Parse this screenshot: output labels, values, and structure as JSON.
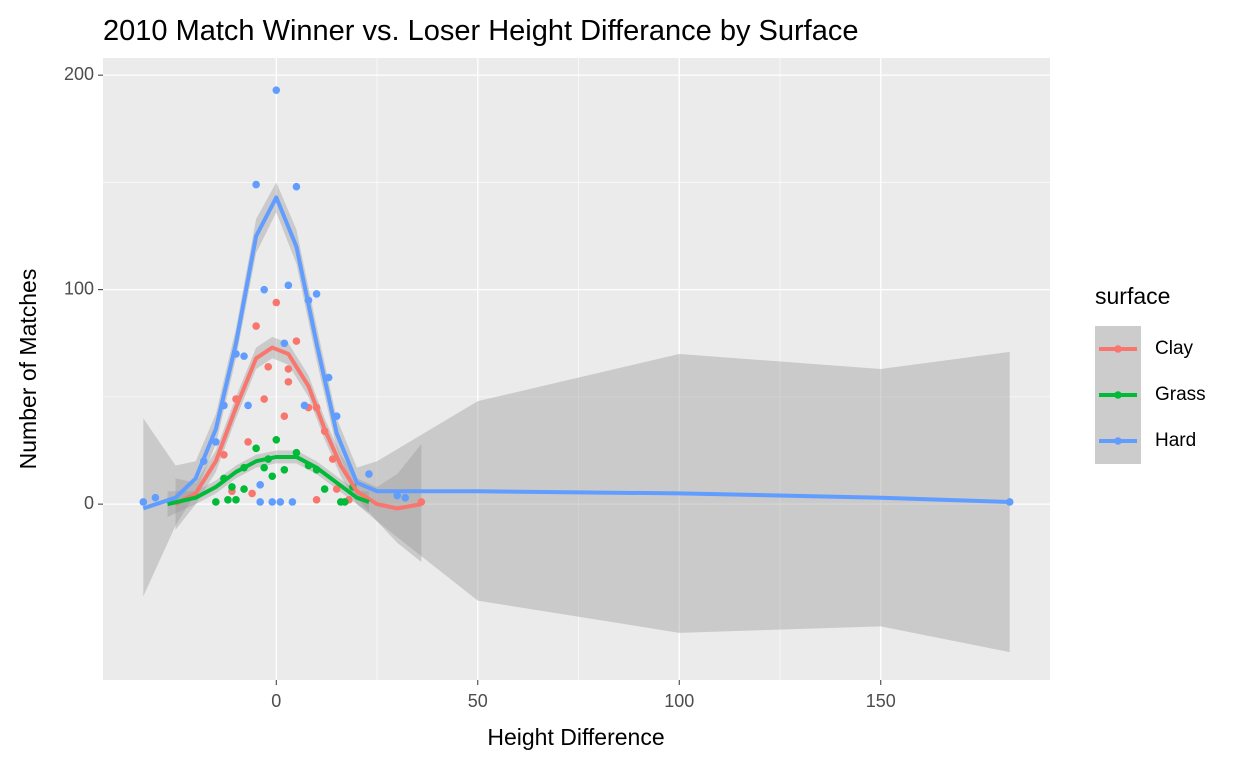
{
  "chart_data": {
    "type": "scatter",
    "title": "2010 Match Winner vs. Loser Height Differance by Surface",
    "x_label": "Height Difference",
    "y_label": "Number of Matches",
    "legend_title": "surface",
    "legend_position": "right",
    "xlim": [
      -43,
      192
    ],
    "ylim": [
      -82,
      208
    ],
    "xticks": [
      0,
      50,
      100,
      150
    ],
    "yticks": [
      0,
      100,
      200
    ],
    "grid": true,
    "series": [
      {
        "name": "Clay",
        "color": "#F8766D",
        "x": [
          0,
          -5,
          5,
          -2,
          3,
          3,
          -10,
          -3,
          8,
          10,
          -13,
          2,
          -7,
          12,
          14,
          -13,
          -11,
          -6,
          15,
          18,
          10,
          36
        ],
        "values": [
          94,
          83,
          76,
          64,
          63,
          57,
          49,
          49,
          45,
          45,
          46,
          41,
          29,
          34,
          21,
          23,
          6,
          5,
          7,
          2,
          2,
          1
        ],
        "smooth": {
          "x": [
            -25,
            -20,
            -15,
            -10,
            -5,
            -1,
            3,
            8,
            12,
            16,
            20,
            25,
            30,
            36
          ],
          "values": [
            0,
            5,
            20,
            45,
            68,
            73,
            70,
            55,
            35,
            18,
            6,
            0,
            -2,
            0
          ],
          "lower": [
            -12,
            0,
            15,
            40,
            63,
            68,
            65,
            50,
            30,
            13,
            0,
            -8,
            -18,
            -27
          ],
          "upper": [
            12,
            10,
            25,
            50,
            73,
            78,
            75,
            60,
            40,
            23,
            12,
            8,
            14,
            28
          ]
        }
      },
      {
        "name": "Grass",
        "color": "#00BA38",
        "x": [
          0,
          -5,
          5,
          -2,
          -3,
          -1,
          2,
          8,
          10,
          -8,
          -13,
          -11,
          -8,
          -10,
          -15,
          -12,
          16,
          17,
          12,
          19
        ],
        "values": [
          30,
          26,
          24,
          21,
          17,
          13,
          16,
          18,
          16,
          17,
          12,
          8,
          7,
          2,
          1,
          2,
          1,
          1,
          7,
          8
        ],
        "smooth": {
          "x": [
            -27,
            -20,
            -15,
            -10,
            -5,
            0,
            5,
            10,
            15,
            20,
            23
          ],
          "values": [
            0,
            3,
            8,
            15,
            20,
            22,
            22,
            17,
            10,
            3,
            1
          ],
          "lower": [
            -6,
            0,
            5,
            12,
            17,
            19,
            19,
            14,
            7,
            0,
            -4
          ],
          "upper": [
            6,
            6,
            11,
            18,
            23,
            25,
            25,
            20,
            13,
            6,
            6
          ]
        }
      },
      {
        "name": "Hard",
        "color": "#619CFF",
        "x": [
          -33,
          -30,
          -18,
          -15,
          0,
          -5,
          5,
          3,
          10,
          -3,
          8,
          2,
          -10,
          -8,
          13,
          7,
          -13,
          -7,
          15,
          -4,
          -4,
          -1,
          1,
          4,
          23,
          30,
          32,
          182
        ],
        "values": [
          1,
          3,
          20,
          29,
          193,
          149,
          148,
          102,
          98,
          100,
          95,
          75,
          70,
          69,
          59,
          46,
          46,
          46,
          41,
          9,
          1,
          1,
          1,
          1,
          14,
          4,
          3,
          1
        ],
        "smooth": {
          "x": [
            -33,
            -25,
            -20,
            -15,
            -10,
            -5,
            0,
            5,
            10,
            15,
            20,
            25,
            50,
            100,
            150,
            182
          ],
          "values": [
            -2,
            3,
            12,
            35,
            75,
            125,
            143,
            120,
            75,
            33,
            10,
            6,
            6,
            5,
            3,
            1
          ],
          "lower": [
            -43,
            -10,
            5,
            28,
            68,
            117,
            136,
            112,
            67,
            26,
            3,
            -8,
            -45,
            -60,
            -57,
            -69
          ],
          "upper": [
            40,
            18,
            20,
            42,
            82,
            133,
            150,
            128,
            83,
            40,
            17,
            20,
            48,
            70,
            63,
            71
          ]
        }
      }
    ]
  }
}
